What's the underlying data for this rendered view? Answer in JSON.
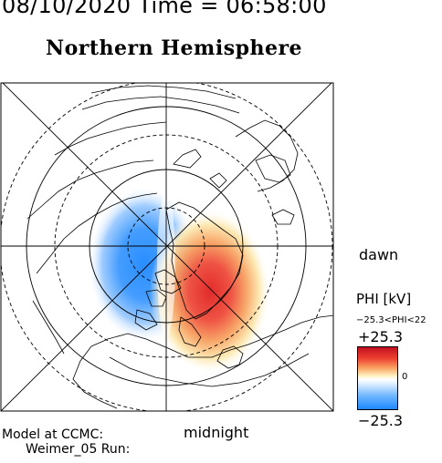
{
  "header": {
    "datetime": "08/10/2020 Time = 06:58:00",
    "hemisphere": "Northern Hemisphere"
  },
  "map": {
    "local_time_labels": {
      "right": "dawn",
      "bottom": "midnight"
    },
    "potential_pattern": {
      "negative_cell": "dusk / pre-midnight sector",
      "positive_cell": "dawn / post-midnight sector"
    }
  },
  "colorbar": {
    "title": "PHI [kV]",
    "range_text": "−25.3<PHI<22",
    "max_label": "+25.3",
    "zero_label": "0",
    "min_label": "−25.3",
    "colors": {
      "max": "#c01020",
      "zero": "#ffffff",
      "min": "#1e88ff"
    }
  },
  "footer": {
    "line1": "Model at CCMC:",
    "line2": "Weimer_05 Run:"
  }
}
